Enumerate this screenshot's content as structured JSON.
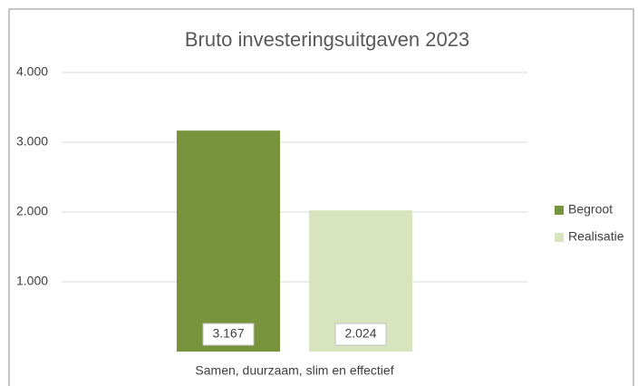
{
  "chart_data": {
    "type": "bar",
    "title": "Bruto investeringsuitgaven 2023",
    "categories": [
      "Samen, duurzaam, slim en effectief"
    ],
    "series": [
      {
        "name": "Begroot",
        "color": "#77933c",
        "values": [
          3167
        ],
        "value_labels": [
          "3.167"
        ]
      },
      {
        "name": "Realisatie",
        "color": "#d7e4bd",
        "values": [
          2024
        ],
        "value_labels": [
          "2.024"
        ]
      }
    ],
    "ylim": [
      0,
      4000
    ],
    "yticks": [
      {
        "value": 1000,
        "label": "1.000"
      },
      {
        "value": 2000,
        "label": "2.000"
      },
      {
        "value": 3000,
        "label": "3.000"
      },
      {
        "value": 4000,
        "label": "4.000"
      }
    ],
    "grid": true,
    "legend": "right"
  }
}
